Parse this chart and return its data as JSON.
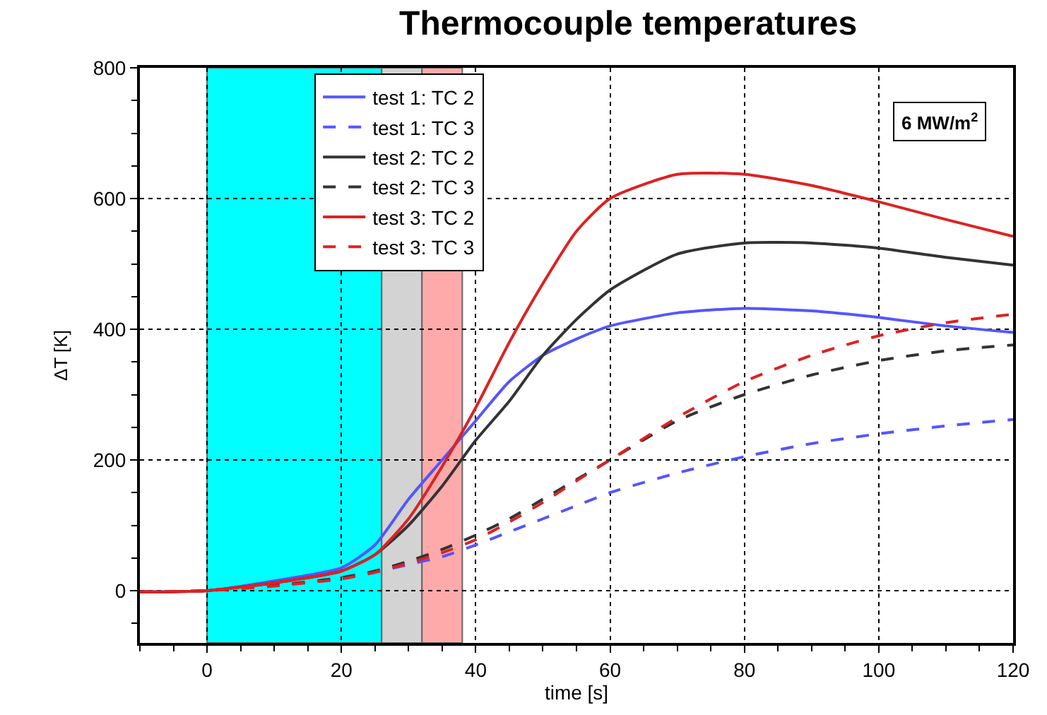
{
  "chart_data": {
    "type": "line",
    "title": "Thermocouple temperatures",
    "xlabel": "time [s]",
    "ylabel": "ΔT [K]",
    "x": [
      -10,
      0,
      10,
      20,
      25,
      30,
      35,
      40,
      45,
      50,
      55,
      60,
      70,
      80,
      90,
      100,
      110,
      120
    ],
    "xlim": [
      -10,
      120
    ],
    "xticks": [
      0,
      20,
      40,
      60,
      80,
      100,
      120
    ],
    "ylim": [
      -80,
      800
    ],
    "yticks": [
      0,
      200,
      400,
      600,
      800
    ],
    "grid": true,
    "legend": "top left",
    "line_style": "solid",
    "series": [
      {
        "name": "test 1: TC 2",
        "color": "#5555ff",
        "values": [
          -2,
          0,
          15,
          35,
          70,
          140,
          200,
          260,
          320,
          360,
          385,
          405,
          425,
          432,
          428,
          418,
          405,
          395
        ]
      },
      {
        "name": "test 1: TC 3",
        "color": "#5555ff",
        "line_style": "dashed",
        "values": [
          -2,
          0,
          8,
          18,
          28,
          40,
          52,
          70,
          90,
          110,
          130,
          150,
          180,
          205,
          225,
          240,
          252,
          262
        ]
      },
      {
        "name": "test 2: TC 2",
        "color": "#333333",
        "values": [
          -2,
          0,
          12,
          30,
          55,
          100,
          160,
          230,
          290,
          360,
          415,
          460,
          515,
          532,
          532,
          524,
          510,
          498
        ]
      },
      {
        "name": "test 2: TC 3",
        "color": "#333333",
        "line_style": "dashed",
        "values": [
          -2,
          0,
          8,
          20,
          30,
          45,
          63,
          85,
          110,
          140,
          170,
          200,
          260,
          300,
          330,
          352,
          367,
          376
        ]
      },
      {
        "name": "test 3: TC 2",
        "color": "#dd2222",
        "values": [
          -2,
          0,
          12,
          30,
          55,
          110,
          190,
          280,
          380,
          470,
          550,
          600,
          637,
          637,
          620,
          595,
          568,
          542
        ]
      },
      {
        "name": "test 3: TC 3",
        "color": "#dd2222",
        "line_style": "dashed",
        "values": [
          -2,
          0,
          7,
          18,
          28,
          42,
          58,
          78,
          105,
          135,
          168,
          200,
          265,
          320,
          360,
          390,
          410,
          423
        ]
      }
    ],
    "bands": [
      {
        "axis": "x",
        "from": 0,
        "to": 26,
        "color": "#00ffff"
      },
      {
        "axis": "x",
        "from": 26,
        "to": 32,
        "color": "#d3d3d3"
      },
      {
        "axis": "x",
        "from": 32,
        "to": 38,
        "color": "#ffaaaa"
      }
    ],
    "annotations": [
      "6 MW/m$^{2}$"
    ]
  }
}
